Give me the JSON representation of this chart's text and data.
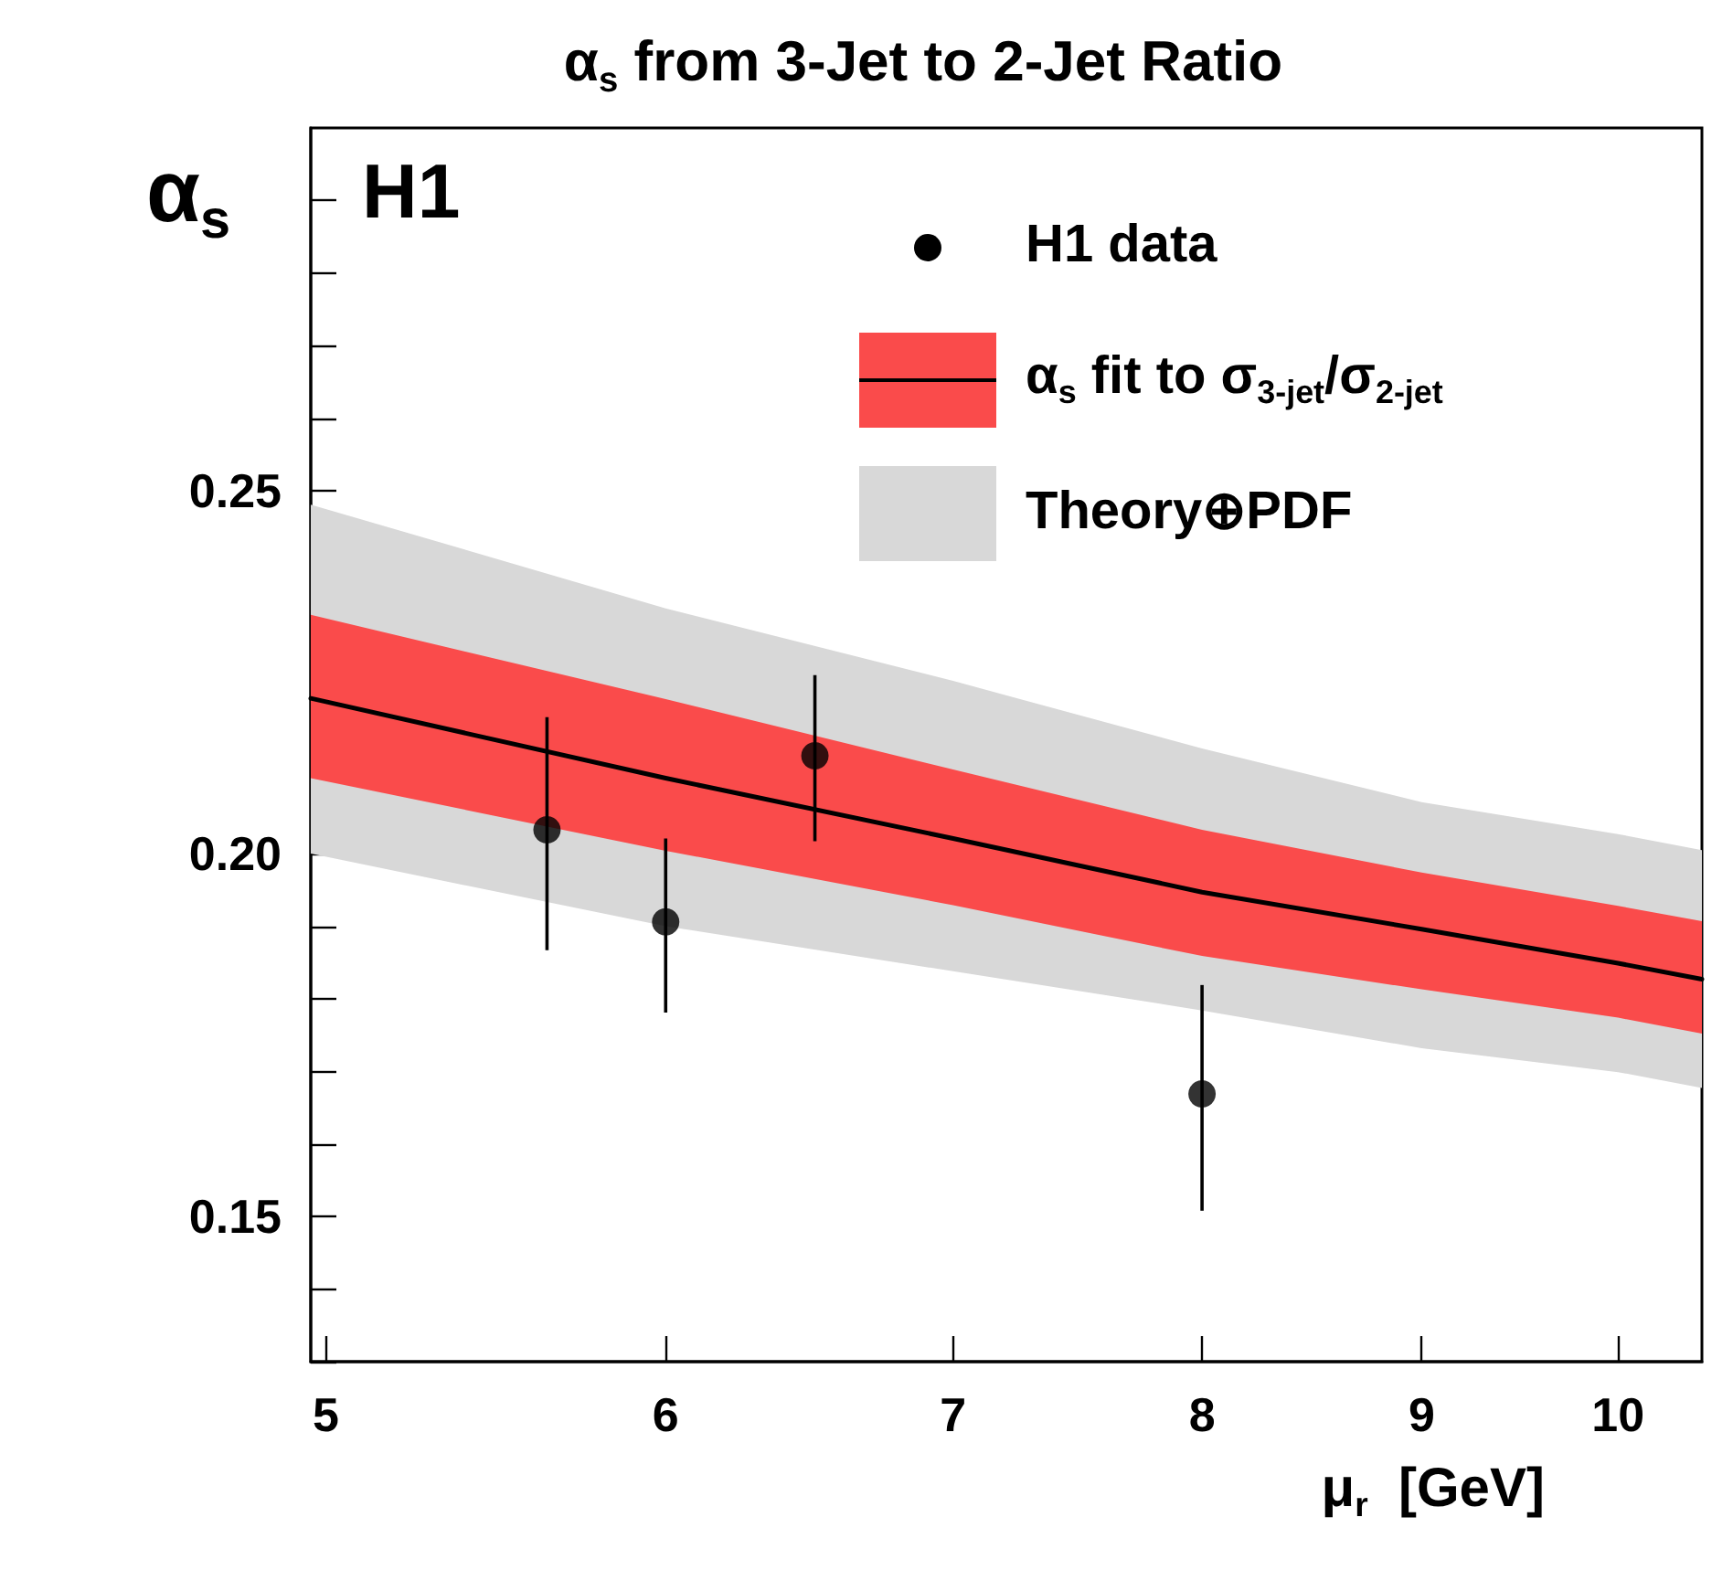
{
  "chart_data": {
    "type": "scatter",
    "title": "α$_{s}$ from 3-Jet to 2-Jet Ratio",
    "xlabel": "μ$_{r}$  [GeV]",
    "ylabel": "α$_{s}$",
    "annotations": [
      "H1"
    ],
    "log": "x",
    "xlim": [
      4.96,
      10.46
    ],
    "xticks": [
      5,
      6,
      7,
      8,
      9,
      10
    ],
    "ylim": [
      0.13,
      0.3
    ],
    "yticks": [
      {
        "value": 0.13,
        "label": null
      },
      {
        "value": 0.14,
        "label": null
      },
      {
        "value": 0.15,
        "label": "0.15"
      },
      {
        "value": 0.16,
        "label": null
      },
      {
        "value": 0.17,
        "label": null
      },
      {
        "value": 0.18,
        "label": null
      },
      {
        "value": 0.19,
        "label": null
      },
      {
        "value": 0.2,
        "label": "0.20"
      },
      {
        "value": 0.21,
        "label": null
      },
      {
        "value": 0.22,
        "label": null
      },
      {
        "value": 0.23,
        "label": null
      },
      {
        "value": 0.24,
        "label": null
      },
      {
        "value": 0.25,
        "label": "0.25"
      },
      {
        "value": 0.26,
        "label": null
      },
      {
        "value": 0.27,
        "label": null
      },
      {
        "value": 0.28,
        "label": null
      },
      {
        "value": 0.29,
        "label": null
      }
    ],
    "grid": false,
    "legend": "top right",
    "series": [
      {
        "name": "Theory⊕PDF",
        "type": "area",
        "color": "#d8d8d8",
        "x": [
          4.96,
          6,
          7,
          8,
          9,
          10,
          10.46
        ],
        "values": [
          null,
          null,
          null,
          null,
          null,
          null,
          null
        ],
        "lower": [
          0.2,
          0.19,
          0.1838,
          0.1784,
          0.1732,
          0.1699,
          0.1677
        ],
        "upper": [
          0.2481,
          0.2338,
          0.2238,
          0.2145,
          0.2071,
          0.2027,
          0.2005
        ]
      },
      {
        "type": "area",
        "color": "#fa4b4b",
        "x": [
          4.96,
          6,
          7,
          8,
          9,
          10,
          10.46
        ],
        "values": [
          null,
          null,
          null,
          null,
          null,
          null,
          null
        ],
        "lower": [
          0.2104,
          0.2004,
          0.1929,
          0.1859,
          0.1813,
          0.1774,
          0.1752
        ],
        "upper": [
          0.2329,
          0.2213,
          0.2116,
          0.2033,
          0.1974,
          0.1928,
          0.1907
        ]
      },
      {
        "name": "α$_{s}$ fit to σ$_{3-jet}$/σ$_{2-jet}$",
        "type": "line",
        "color": "#000000",
        "line_style": "solid",
        "marker": "none",
        "x": [
          4.96,
          6,
          7,
          8,
          9,
          10,
          10.46
        ],
        "values": [
          0.2214,
          0.2104,
          0.2021,
          0.1947,
          0.1896,
          0.1849,
          0.1827
        ]
      },
      {
        "name": "H1 data",
        "color": "#000000",
        "marker": "circle",
        "x": [
          5.63,
          6.0,
          6.5,
          8.0
        ],
        "values": [
          0.2033,
          0.1906,
          0.2135,
          0.1669
        ],
        "errors": [
          [
            0.1867,
            0.2188
          ],
          [
            0.1781,
            0.2021
          ],
          [
            0.2017,
            0.2246
          ],
          [
            0.1508,
            0.1819
          ]
        ]
      }
    ]
  }
}
